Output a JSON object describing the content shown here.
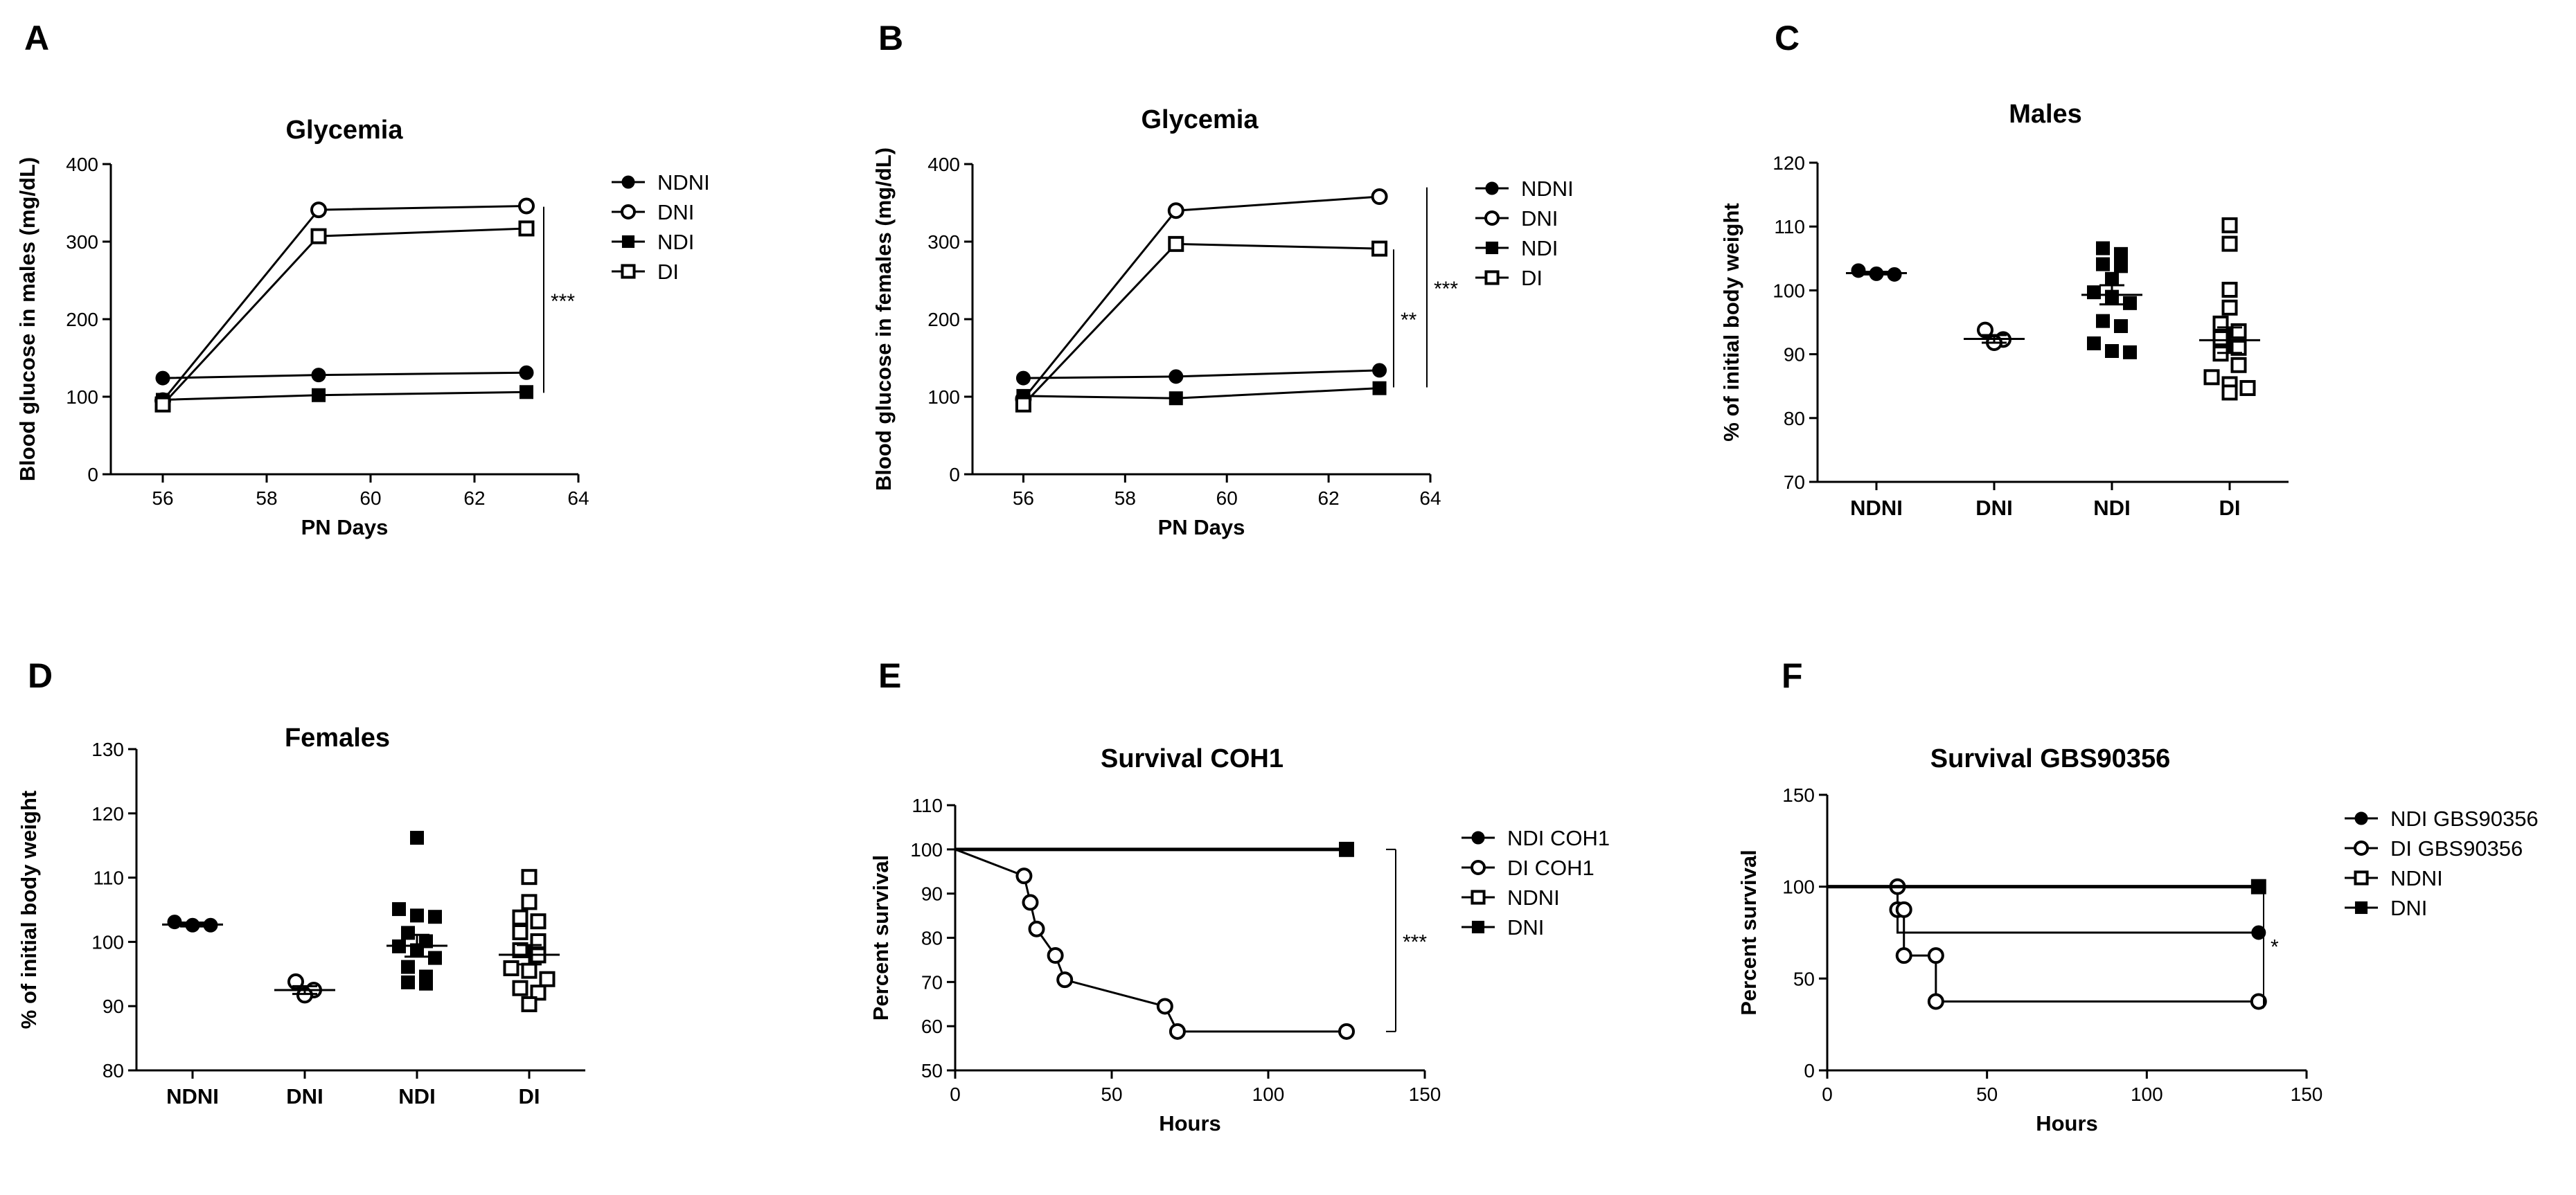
{
  "chart_data": [
    {
      "panel": "A",
      "type": "line",
      "title": "Glycemia",
      "xlabel": "PN Days",
      "ylabel": "Blood glucose in males (mg/dL)",
      "xlim": [
        55,
        64
      ],
      "ylim": [
        0,
        400
      ],
      "xticks": [
        56,
        58,
        60,
        62,
        64
      ],
      "yticks": [
        0,
        100,
        200,
        300,
        400
      ],
      "x": [
        56,
        59,
        63
      ],
      "series": [
        {
          "name": "NDNI",
          "marker": "filled-circle",
          "values": [
            124,
            128,
            131
          ]
        },
        {
          "name": "DNI",
          "marker": "open-circle",
          "values": [
            95,
            341,
            346
          ]
        },
        {
          "name": "NDI",
          "marker": "filled-square",
          "values": [
            96,
            102,
            106
          ]
        },
        {
          "name": "DI",
          "marker": "open-square",
          "values": [
            90,
            307,
            317
          ]
        }
      ],
      "significance": [
        {
          "label": "***",
          "from": 105,
          "to": 345
        }
      ]
    },
    {
      "panel": "B",
      "type": "line",
      "title": "Glycemia",
      "xlabel": "PN Days",
      "ylabel": "Blood glucose in females (mg/dL)",
      "xlim": [
        55,
        64
      ],
      "ylim": [
        0,
        400
      ],
      "xticks": [
        56,
        58,
        60,
        62,
        64
      ],
      "yticks": [
        0,
        100,
        200,
        300,
        400
      ],
      "x": [
        56,
        59,
        63
      ],
      "series": [
        {
          "name": "NDNI",
          "marker": "filled-circle",
          "values": [
            124,
            126,
            134
          ]
        },
        {
          "name": "DNI",
          "marker": "open-circle",
          "values": [
            97,
            340,
            358
          ]
        },
        {
          "name": "NDI",
          "marker": "filled-square",
          "values": [
            101,
            98,
            111
          ]
        },
        {
          "name": "DI",
          "marker": "open-square",
          "values": [
            90,
            297,
            291
          ]
        }
      ],
      "significance": [
        {
          "label": "***",
          "from": 112,
          "to": 370
        },
        {
          "label": "**",
          "from": 112,
          "to": 290
        }
      ]
    },
    {
      "panel": "C",
      "type": "scatter",
      "title": "Males",
      "xlabel": "",
      "ylabel": "% of initial body weight",
      "categories": [
        "NDNI",
        "DNI",
        "NDI",
        "DI"
      ],
      "ylim": [
        70,
        120
      ],
      "yticks": [
        70,
        80,
        90,
        100,
        110,
        120
      ],
      "groups": [
        {
          "name": "NDNI",
          "marker": "filled-circle",
          "mean": 102.7,
          "sem": 0.2,
          "points": [
            103.1,
            102.6,
            102.5
          ]
        },
        {
          "name": "DNI",
          "marker": "open-circle",
          "mean": 92.4,
          "sem": 0.6,
          "points": [
            93.8,
            91.8,
            92.3
          ]
        },
        {
          "name": "NDI",
          "marker": "filled-square",
          "mean": 99.3,
          "sem": 1.5,
          "points": [
            106.6,
            105.7,
            104.1,
            103.8,
            101.8,
            99.7,
            99.0,
            98.0,
            95.2,
            94.4,
            91.7,
            90.5,
            90.3
          ]
        },
        {
          "name": "DI",
          "marker": "open-square",
          "mean": 92.2,
          "sem": 2.0,
          "points": [
            110.2,
            107.3,
            100.1,
            97.3,
            94.8,
            93.6,
            92.5,
            91.0,
            90.1,
            88.3,
            86.4,
            85.3,
            84.7,
            84.0
          ]
        }
      ]
    },
    {
      "panel": "D",
      "type": "scatter",
      "title": "Females",
      "xlabel": "",
      "ylabel": "% of initial body weight",
      "categories": [
        "NDNI",
        "DNI",
        "NDI",
        "DI"
      ],
      "ylim": [
        80,
        130
      ],
      "yticks": [
        80,
        90,
        100,
        110,
        120,
        130
      ],
      "groups": [
        {
          "name": "NDNI",
          "marker": "filled-circle",
          "mean": 102.7,
          "sem": 0.3,
          "points": [
            103.1,
            102.6,
            102.6
          ]
        },
        {
          "name": "DNI",
          "marker": "open-circle",
          "mean": 92.5,
          "sem": 0.6,
          "points": [
            93.8,
            91.7,
            92.5
          ]
        },
        {
          "name": "NDI",
          "marker": "filled-square",
          "mean": 99.4,
          "sem": 1.7,
          "points": [
            116.2,
            105.1,
            104.1,
            103.9,
            101.4,
            100.1,
            99.3,
            98.7,
            97.5,
            96.1,
            94.6,
            93.7,
            93.5
          ]
        },
        {
          "name": "DI",
          "marker": "open-square",
          "mean": 98.0,
          "sem": 1.5,
          "points": [
            110.1,
            106.2,
            103.8,
            103.2,
            101.5,
            100.1,
            98.7,
            97.9,
            95.9,
            95.5,
            94.2,
            92.8,
            92.1,
            90.3
          ]
        }
      ]
    },
    {
      "panel": "E",
      "type": "line",
      "title": "Survival COH1",
      "xlabel": "Hours",
      "ylabel": "Percent survival",
      "xlim": [
        0,
        150
      ],
      "ylim": [
        50,
        110
      ],
      "xticks": [
        0,
        50,
        100,
        150
      ],
      "yticks": [
        50,
        60,
        70,
        80,
        90,
        100,
        110
      ],
      "series": [
        {
          "name": "NDI COH1",
          "marker": "filled-circle",
          "x": [
            0,
            125
          ],
          "values": [
            100,
            100
          ]
        },
        {
          "name": "DI COH1",
          "marker": "open-circle",
          "x": [
            0,
            22,
            24,
            26,
            32,
            35,
            67,
            71,
            125
          ],
          "values": [
            100,
            94,
            88,
            82,
            76,
            70.5,
            64.5,
            58.8,
            58.8
          ]
        },
        {
          "name": "NDNI",
          "marker": "open-square",
          "x": [
            0,
            125
          ],
          "values": [
            100,
            100
          ]
        },
        {
          "name": "DNI",
          "marker": "filled-square",
          "x": [
            0,
            125
          ],
          "values": [
            100,
            100
          ]
        }
      ],
      "significance": [
        {
          "label": "***",
          "from": 58.8,
          "to": 100
        }
      ]
    },
    {
      "panel": "F",
      "type": "line",
      "title": "Survival GBS90356",
      "xlabel": "Hours",
      "ylabel": "Percent survival",
      "xlim": [
        0,
        150
      ],
      "ylim": [
        0,
        150
      ],
      "xticks": [
        0,
        50,
        100,
        150
      ],
      "yticks": [
        0,
        50,
        100,
        150
      ],
      "series": [
        {
          "name": "NDI GBS90356",
          "marker": "filled-circle",
          "x": [
            0,
            22,
            22,
            135
          ],
          "values": [
            100,
            100,
            75,
            75
          ]
        },
        {
          "name": "DI GBS90356",
          "marker": "open-circle",
          "x": [
            0,
            22,
            22,
            24,
            24,
            34,
            34,
            135
          ],
          "values": [
            100,
            100,
            87.5,
            87.5,
            62.5,
            62.5,
            37.5,
            37.5
          ]
        },
        {
          "name": "NDNI",
          "marker": "open-square",
          "x": [
            0,
            135
          ],
          "values": [
            100,
            100
          ]
        },
        {
          "name": "DNI",
          "marker": "filled-square",
          "x": [
            0,
            135
          ],
          "values": [
            100,
            100
          ]
        }
      ],
      "significance": [
        {
          "label": "*",
          "from": 34,
          "to": 102
        }
      ]
    }
  ]
}
